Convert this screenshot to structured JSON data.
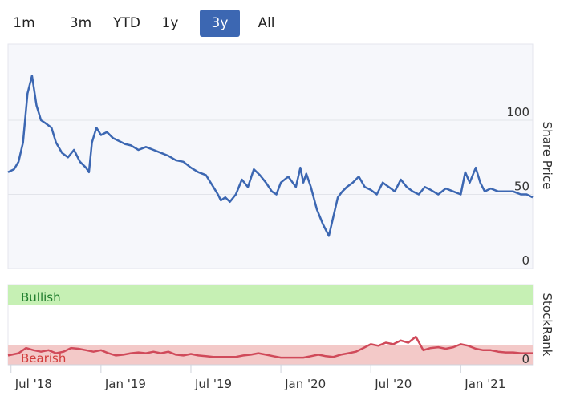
{
  "range_selector": {
    "buttons": [
      {
        "label": "1m"
      },
      {
        "label": "3m"
      },
      {
        "label": "YTD"
      },
      {
        "label": "1y"
      },
      {
        "label": "3y"
      },
      {
        "label": "All"
      }
    ],
    "selected": "3y"
  },
  "colors": {
    "price_line": "#3c67b2",
    "rank_line": "#d04a5a",
    "rank_line_highlight": "#8f9fbf",
    "bullish_band": "#c6f0b4",
    "bearish_band": "#f3c9c8",
    "plot_background": "#f6f7fb",
    "selected_button": "#3c67b2",
    "bullish_text": "#1f7d2c",
    "bearish_text": "#d23a3a"
  },
  "chart_data": [
    {
      "type": "line",
      "ylabel": "Share Price",
      "ylim": [
        0,
        140
      ],
      "yticks": [
        0,
        50,
        100
      ],
      "grid": true,
      "x_ticks": [
        "Jul '18",
        "Jan '19",
        "Jul '19",
        "Jan '20",
        "Jul '20",
        "Jan '21"
      ],
      "x_tick_months": [
        0,
        6,
        12,
        18,
        24,
        30
      ],
      "x_range_months": [
        -0.2,
        34.8
      ],
      "series": [
        {
          "x_months": [
            -0.2,
            0.2,
            0.5,
            0.8,
            1.1,
            1.4,
            1.7,
            2.0,
            2.3,
            2.7,
            3.0,
            3.4,
            3.8,
            4.2,
            4.6,
            5.0,
            5.2,
            5.4,
            5.7,
            6.0,
            6.4,
            6.8,
            7.2,
            7.6,
            8.0,
            8.5,
            9.0,
            9.5,
            10.0,
            10.5,
            11.0,
            11.5,
            12.0,
            12.5,
            13.0,
            13.5,
            13.8,
            14.0,
            14.3,
            14.6,
            15.0,
            15.4,
            15.8,
            16.2,
            16.6,
            17.0,
            17.4,
            17.7,
            18.0,
            18.5,
            19.0,
            19.3,
            19.5,
            19.7,
            20.0,
            20.4,
            20.8,
            21.2,
            21.5,
            21.8,
            22.1,
            22.4,
            22.8,
            23.2,
            23.6,
            24.0,
            24.4,
            24.8,
            25.2,
            25.6,
            26.0,
            26.4,
            26.8,
            27.2,
            27.6,
            28.0,
            28.5,
            29.0,
            29.5,
            30.0,
            30.3,
            30.6,
            31.0,
            31.3,
            31.6,
            32.0,
            32.5,
            33.0,
            33.5,
            34.0,
            34.4,
            34.8
          ],
          "values": [
            65,
            67,
            72,
            85,
            118,
            130,
            110,
            100,
            98,
            95,
            85,
            78,
            75,
            80,
            72,
            68,
            65,
            85,
            95,
            90,
            92,
            88,
            86,
            84,
            83,
            80,
            82,
            80,
            78,
            76,
            73,
            72,
            68,
            65,
            63,
            55,
            50,
            46,
            48,
            45,
            50,
            60,
            55,
            67,
            63,
            58,
            52,
            50,
            58,
            62,
            55,
            68,
            58,
            64,
            55,
            40,
            30,
            22,
            35,
            48,
            52,
            55,
            58,
            62,
            55,
            53,
            50,
            58,
            55,
            52,
            60,
            55,
            52,
            50,
            55,
            53,
            50,
            54,
            52,
            50,
            65,
            58,
            68,
            58,
            52,
            54,
            52,
            52,
            52,
            50,
            50,
            48
          ]
        }
      ]
    },
    {
      "type": "line",
      "ylabel": "StockRank",
      "yticks": [
        0
      ],
      "bands": [
        {
          "label": "Bullish",
          "from": 70,
          "to": 100
        },
        {
          "label": "Bearish",
          "from": 0,
          "to": 30
        }
      ],
      "x_ticks": [
        "Jul '18",
        "Jan '19",
        "Jul '19",
        "Jan '20",
        "Jul '20",
        "Jan '21"
      ],
      "x_tick_months": [
        0,
        6,
        12,
        18,
        24,
        30
      ],
      "x_range_months": [
        -0.2,
        34.8
      ],
      "series": [
        {
          "x_months": [
            -0.2,
            0.5,
            1.0,
            1.5,
            2.0,
            2.5,
            3.0,
            3.5,
            4.0,
            4.5,
            5.0,
            5.5,
            6.0,
            6.5,
            7.0,
            7.5,
            8.0,
            8.5,
            9.0,
            9.5,
            10.0,
            10.5,
            11.0,
            11.5,
            12.0,
            12.5,
            13.0,
            13.5,
            14.0,
            14.5,
            15.0,
            15.5,
            16.0,
            16.5,
            17.0,
            17.5,
            18.0,
            18.5,
            19.0,
            19.5,
            20.0,
            20.5,
            21.0,
            21.5,
            22.0,
            22.5,
            23.0,
            23.5,
            24.0,
            24.5,
            25.0,
            25.5,
            26.0,
            26.5,
            27.0,
            27.5,
            28.0,
            28.5,
            29.0,
            29.5,
            30.0,
            30.5,
            31.0,
            31.5,
            32.0,
            32.5,
            33.0,
            33.5,
            34.0,
            34.4,
            34.8
          ],
          "values": [
            5,
            8,
            15,
            12,
            10,
            12,
            8,
            10,
            15,
            14,
            12,
            10,
            12,
            8,
            5,
            6,
            8,
            9,
            8,
            10,
            8,
            10,
            6,
            5,
            7,
            5,
            4,
            3,
            3,
            3,
            3,
            5,
            6,
            8,
            6,
            4,
            2,
            2,
            2,
            2,
            4,
            6,
            4,
            3,
            6,
            8,
            10,
            15,
            20,
            18,
            22,
            20,
            25,
            22,
            30,
            12,
            15,
            16,
            14,
            16,
            20,
            18,
            14,
            12,
            12,
            10,
            9,
            9,
            8,
            8,
            8
          ]
        }
      ]
    }
  ]
}
